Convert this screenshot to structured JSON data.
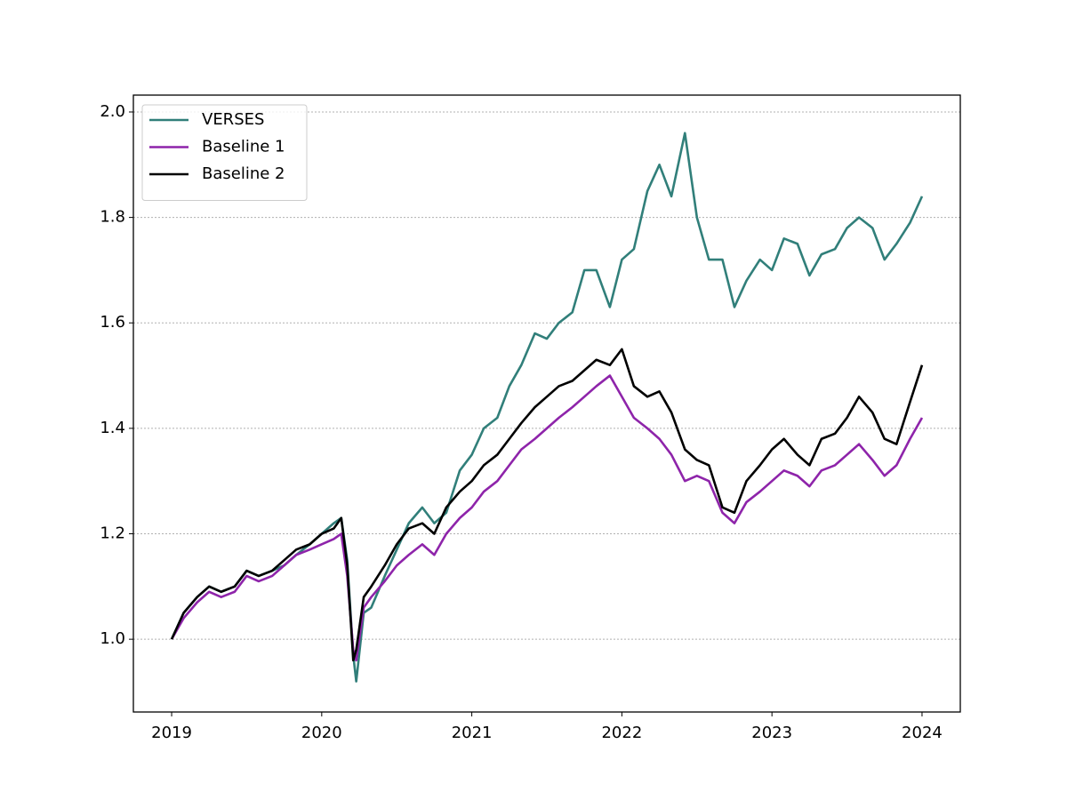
{
  "chart_data": {
    "type": "line",
    "x": [
      2019.0,
      2019.08,
      2019.17,
      2019.25,
      2019.33,
      2019.42,
      2019.5,
      2019.58,
      2019.67,
      2019.75,
      2019.83,
      2019.92,
      2020.0,
      2020.08,
      2020.13,
      2020.17,
      2020.21,
      2020.23,
      2020.28,
      2020.33,
      2020.42,
      2020.5,
      2020.58,
      2020.67,
      2020.75,
      2020.83,
      2020.92,
      2021.0,
      2021.08,
      2021.17,
      2021.25,
      2021.33,
      2021.42,
      2021.5,
      2021.58,
      2021.67,
      2021.75,
      2021.83,
      2021.92,
      2022.0,
      2022.08,
      2022.17,
      2022.25,
      2022.33,
      2022.42,
      2022.5,
      2022.58,
      2022.67,
      2022.75,
      2022.83,
      2022.92,
      2023.0,
      2023.08,
      2023.17,
      2023.25,
      2023.33,
      2023.42,
      2023.5,
      2023.58,
      2023.67,
      2023.75,
      2023.83,
      2023.92,
      2024.0
    ],
    "series": [
      {
        "name": "VERSES",
        "color": "#317f7a",
        "values": [
          1.0,
          1.05,
          1.08,
          1.1,
          1.09,
          1.1,
          1.13,
          1.12,
          1.13,
          1.14,
          1.16,
          1.18,
          1.2,
          1.22,
          1.23,
          1.15,
          0.97,
          0.92,
          1.05,
          1.06,
          1.12,
          1.17,
          1.22,
          1.25,
          1.22,
          1.24,
          1.32,
          1.35,
          1.4,
          1.42,
          1.48,
          1.52,
          1.58,
          1.57,
          1.6,
          1.62,
          1.7,
          1.7,
          1.63,
          1.72,
          1.74,
          1.85,
          1.9,
          1.84,
          1.96,
          1.8,
          1.72,
          1.72,
          1.63,
          1.68,
          1.72,
          1.7,
          1.76,
          1.75,
          1.69,
          1.73,
          1.74,
          1.78,
          1.8,
          1.78,
          1.72,
          1.75,
          1.79,
          1.84
        ]
      },
      {
        "name": "Baseline 1",
        "color": "#8e24aa",
        "values": [
          1.0,
          1.04,
          1.07,
          1.09,
          1.08,
          1.09,
          1.12,
          1.11,
          1.12,
          1.14,
          1.16,
          1.17,
          1.18,
          1.19,
          1.2,
          1.12,
          0.98,
          0.96,
          1.06,
          1.08,
          1.11,
          1.14,
          1.16,
          1.18,
          1.16,
          1.2,
          1.23,
          1.25,
          1.28,
          1.3,
          1.33,
          1.36,
          1.38,
          1.4,
          1.42,
          1.44,
          1.46,
          1.48,
          1.5,
          1.46,
          1.42,
          1.4,
          1.38,
          1.35,
          1.3,
          1.31,
          1.3,
          1.24,
          1.22,
          1.26,
          1.28,
          1.3,
          1.32,
          1.31,
          1.29,
          1.32,
          1.33,
          1.35,
          1.37,
          1.34,
          1.31,
          1.33,
          1.38,
          1.42
        ]
      },
      {
        "name": "Baseline 2",
        "color": "#000000",
        "values": [
          1.0,
          1.05,
          1.08,
          1.1,
          1.09,
          1.1,
          1.13,
          1.12,
          1.13,
          1.15,
          1.17,
          1.18,
          1.2,
          1.21,
          1.23,
          1.14,
          0.96,
          0.98,
          1.08,
          1.1,
          1.14,
          1.18,
          1.21,
          1.22,
          1.2,
          1.25,
          1.28,
          1.3,
          1.33,
          1.35,
          1.38,
          1.41,
          1.44,
          1.46,
          1.48,
          1.49,
          1.51,
          1.53,
          1.52,
          1.55,
          1.48,
          1.46,
          1.47,
          1.43,
          1.36,
          1.34,
          1.33,
          1.25,
          1.24,
          1.3,
          1.33,
          1.36,
          1.38,
          1.35,
          1.33,
          1.38,
          1.39,
          1.42,
          1.46,
          1.43,
          1.38,
          1.37,
          1.45,
          1.52
        ]
      }
    ],
    "xlim": [
      2018.745,
      2024.255
    ],
    "xticks": [
      2019,
      2020,
      2021,
      2022,
      2023,
      2024
    ],
    "ylim": [
      0.862,
      2.032
    ],
    "yticks": [
      {
        "value": 1.0,
        "label": "1.0"
      },
      1.2,
      1.4,
      1.6,
      1.8,
      {
        "value": 2.0,
        "label": "2.0"
      }
    ],
    "grid": true,
    "legend": "upper-left"
  }
}
